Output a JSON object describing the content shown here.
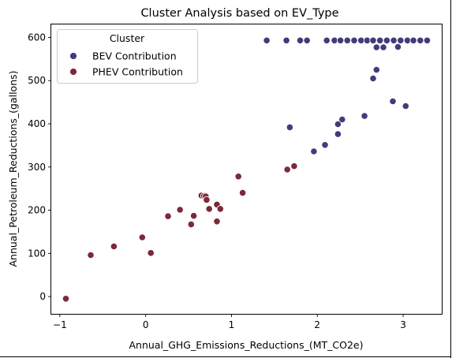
{
  "chart_data": {
    "type": "scatter",
    "title": "Cluster Analysis based on EV_Type",
    "xlabel": "Annual_GHG_Emissions_Reductions_(MT_CO2e)",
    "ylabel": "Annual_Petroleum_Reductions_(gallons)",
    "xlim": [
      -1.1,
      3.45
    ],
    "ylim": [
      -40,
      630
    ],
    "xticks": [
      -1,
      0,
      1,
      2,
      3
    ],
    "yticks": [
      0,
      100,
      200,
      300,
      400,
      500,
      600
    ],
    "grid": false,
    "legend": {
      "title": "Cluster",
      "placement": "top-left"
    },
    "series": [
      {
        "name": "BEV Contribution",
        "color": "#413d7b",
        "points": [
          [
            1.41,
            593
          ],
          [
            1.64,
            593
          ],
          [
            1.8,
            593
          ],
          [
            1.88,
            593
          ],
          [
            2.11,
            593
          ],
          [
            2.2,
            593
          ],
          [
            2.27,
            593
          ],
          [
            2.35,
            593
          ],
          [
            2.43,
            593
          ],
          [
            2.51,
            593
          ],
          [
            2.58,
            593
          ],
          [
            2.65,
            593
          ],
          [
            2.73,
            593
          ],
          [
            2.81,
            593
          ],
          [
            2.89,
            593
          ],
          [
            2.97,
            593
          ],
          [
            3.05,
            593
          ],
          [
            3.12,
            593
          ],
          [
            3.2,
            593
          ],
          [
            3.28,
            593
          ],
          [
            2.69,
            577
          ],
          [
            2.77,
            577
          ],
          [
            2.94,
            578
          ],
          [
            2.69,
            525
          ],
          [
            2.65,
            505
          ],
          [
            2.88,
            452
          ],
          [
            3.03,
            441
          ],
          [
            2.55,
            418
          ],
          [
            2.29,
            410
          ],
          [
            2.24,
            399
          ],
          [
            1.68,
            392
          ],
          [
            2.24,
            376
          ],
          [
            2.09,
            351
          ],
          [
            1.96,
            336
          ]
        ]
      },
      {
        "name": "PHEV Contribution",
        "color": "#7c2939",
        "points": [
          [
            -0.93,
            -5
          ],
          [
            -0.64,
            96
          ],
          [
            -0.37,
            116
          ],
          [
            -0.04,
            137
          ],
          [
            0.06,
            101
          ],
          [
            0.26,
            186
          ],
          [
            0.4,
            201
          ],
          [
            0.53,
            167
          ],
          [
            0.56,
            187
          ],
          [
            0.65,
            234
          ],
          [
            0.68,
            233
          ],
          [
            0.7,
            232
          ],
          [
            0.71,
            224
          ],
          [
            0.74,
            203
          ],
          [
            0.83,
            213
          ],
          [
            0.83,
            174
          ],
          [
            0.87,
            203
          ],
          [
            1.08,
            278
          ],
          [
            1.13,
            240
          ],
          [
            1.65,
            294
          ],
          [
            1.73,
            302
          ]
        ]
      }
    ]
  }
}
